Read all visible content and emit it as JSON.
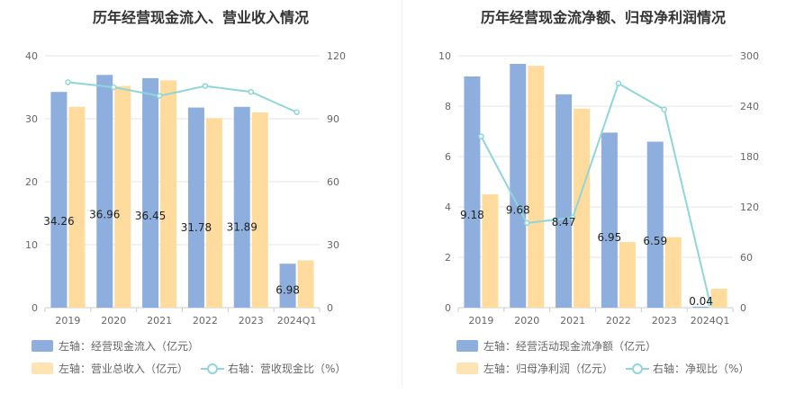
{
  "chart_data": [
    {
      "type": "bar",
      "title": "历年经营现金流入、营业收入情况",
      "categories": [
        "2019",
        "2020",
        "2021",
        "2022",
        "2023",
        "2024Q1"
      ],
      "left_axis": {
        "min": 0,
        "max": 40,
        "ticks": [
          0,
          10,
          20,
          30,
          40
        ]
      },
      "right_axis": {
        "min": 0,
        "max": 120,
        "ticks": [
          0,
          30,
          60,
          90,
          120
        ]
      },
      "series": [
        {
          "name": "左轴：经营现金流入（亿元）",
          "type": "bar",
          "axis": "left",
          "color": "#8eaedd",
          "values": [
            34.26,
            36.96,
            36.45,
            31.78,
            31.89,
            6.98
          ],
          "show_labels": true
        },
        {
          "name": "左轴：营业总收入（亿元）",
          "type": "bar",
          "axis": "left",
          "color": "#ffdb9e",
          "values": [
            31.9,
            35.2,
            36.1,
            30.1,
            31.0,
            7.5
          ],
          "show_labels": false
        },
        {
          "name": "右轴：营收现金比（%）",
          "type": "line",
          "axis": "right",
          "color": "#8fd6d9",
          "values": [
            107.4,
            105.0,
            100.9,
            105.6,
            102.8,
            93.1
          ],
          "show_labels": false
        }
      ],
      "grid": true,
      "legend_position": "bottom-left"
    },
    {
      "type": "bar",
      "title": "历年经营现金流净额、归母净利润情况",
      "categories": [
        "2019",
        "2020",
        "2021",
        "2022",
        "2023",
        "2024Q1"
      ],
      "left_axis": {
        "min": 0,
        "max": 10,
        "ticks": [
          0,
          2,
          4,
          6,
          8,
          10
        ]
      },
      "right_axis": {
        "min": 0,
        "max": 300,
        "ticks": [
          0,
          60,
          120,
          180,
          240,
          300
        ]
      },
      "series": [
        {
          "name": "左轴：经营活动现金流净额（亿元）",
          "type": "bar",
          "axis": "left",
          "color": "#8eaedd",
          "values": [
            9.18,
            9.68,
            8.47,
            6.95,
            6.59,
            0.04
          ],
          "show_labels": true
        },
        {
          "name": "左轴：归母净利润（亿元）",
          "type": "bar",
          "axis": "left",
          "color": "#ffdb9e",
          "values": [
            4.5,
            9.6,
            7.9,
            2.6,
            2.8,
            0.75
          ],
          "show_labels": false
        },
        {
          "name": "右轴：净现比（%）",
          "type": "line",
          "axis": "right",
          "color": "#8fd6d9",
          "values": [
            204,
            100.8,
            107.2,
            267,
            236,
            5.3
          ],
          "show_labels": false
        }
      ],
      "grid": true,
      "legend_position": "bottom-left"
    }
  ]
}
